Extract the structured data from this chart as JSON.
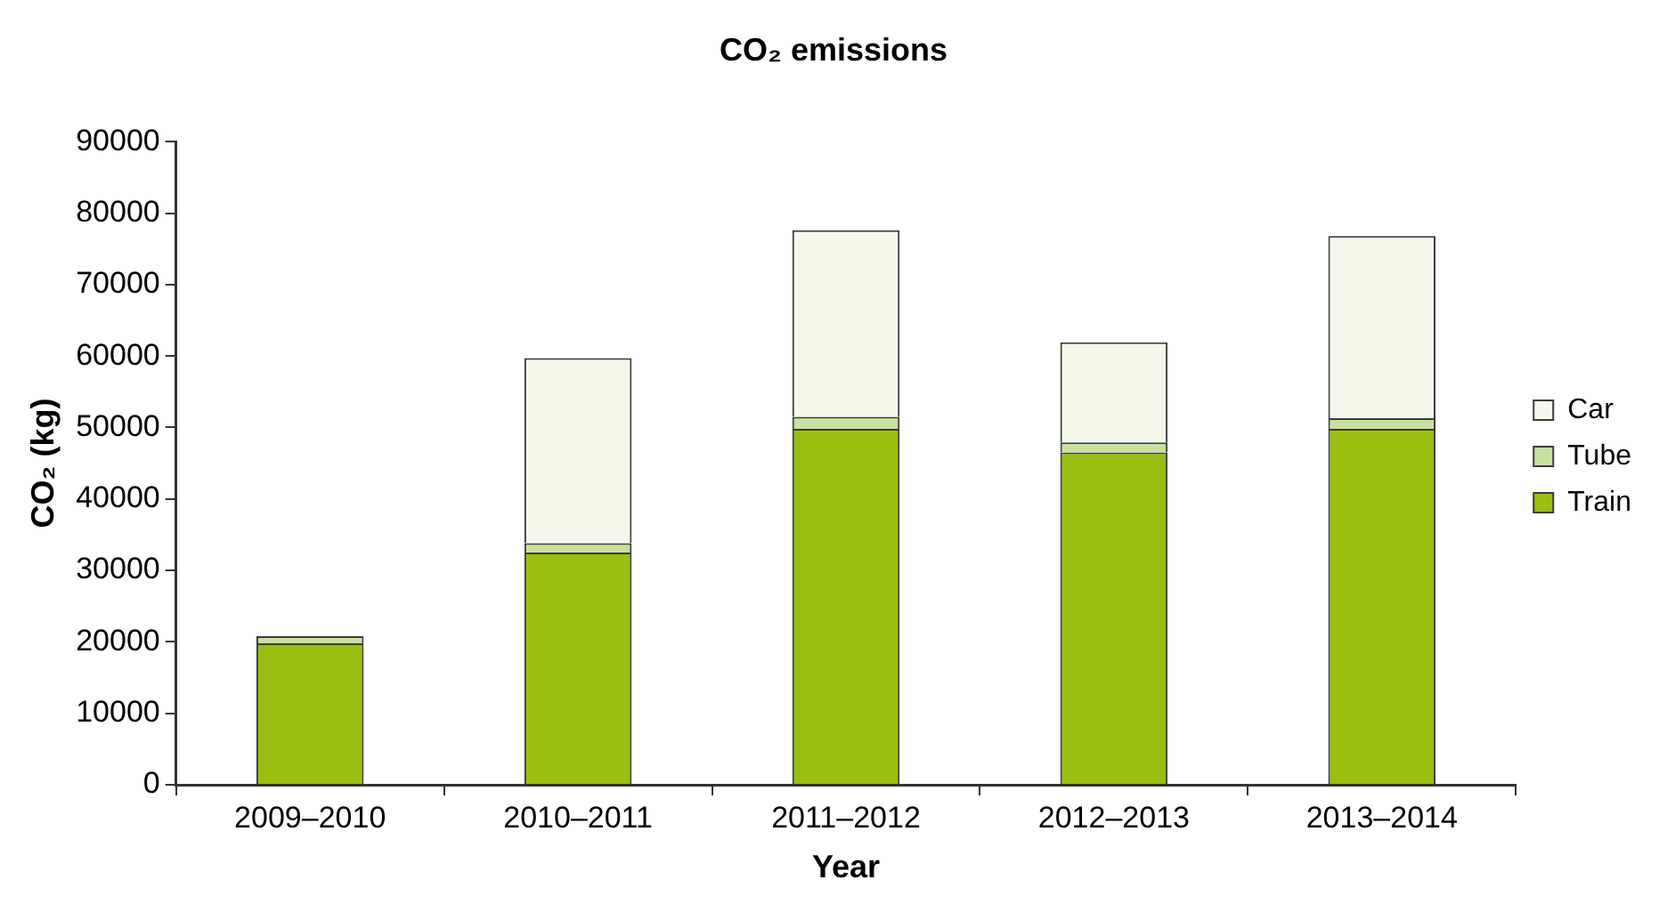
{
  "chart_data": {
    "type": "bar",
    "title": "CO₂ emissions",
    "xlabel": "Year",
    "ylabel": "CO₂ (kg)",
    "categories": [
      "2009–2010",
      "2010–2011",
      "2011–2012",
      "2012–2013",
      "2013–2014"
    ],
    "series": [
      {
        "name": "Train",
        "color": "#99bf12",
        "values": [
          19800,
          32500,
          49800,
          46500,
          49800
        ]
      },
      {
        "name": "Tube",
        "color": "#c9e0a0",
        "values": [
          1000,
          1300,
          1700,
          1400,
          1500
        ]
      },
      {
        "name": "Car",
        "color": "#f3f8ea",
        "values": [
          0,
          25900,
          26100,
          14000,
          25500
        ]
      }
    ],
    "stacked": true,
    "ylim": [
      0,
      90000
    ],
    "yticks": [
      0,
      10000,
      20000,
      30000,
      40000,
      50000,
      60000,
      70000,
      80000,
      90000
    ],
    "grid": false,
    "legend": "right"
  }
}
